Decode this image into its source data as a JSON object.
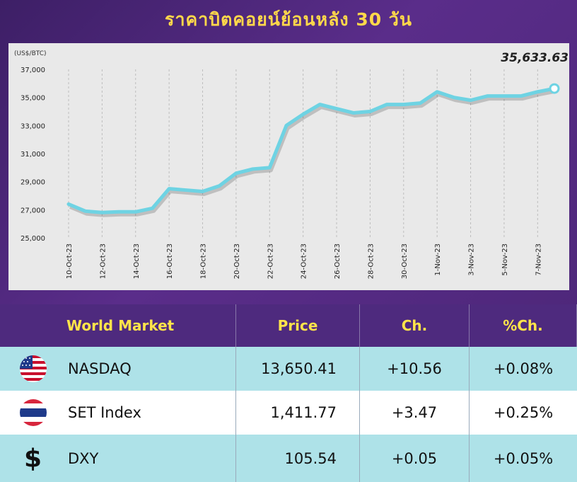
{
  "title": "ราคาบิตคอยน์ย้อนหลัง 30 วัน",
  "chart_data": {
    "type": "line",
    "ylabel": "(US$/BTC)",
    "latest_label": "35,633.63",
    "ylim": [
      25000,
      37000
    ],
    "yticks": [
      "25,000",
      "27,000",
      "29,000",
      "31,000",
      "33,000",
      "35,000",
      "37,000"
    ],
    "ytick_values": [
      25000,
      27000,
      29000,
      31000,
      33000,
      35000,
      37000
    ],
    "x_tick_labels": [
      "10-Oct-23",
      "12-Oct-23",
      "14-Oct-23",
      "16-Oct-23",
      "18-Oct-23",
      "20-Oct-23",
      "22-Oct-23",
      "24-Oct-23",
      "26-Oct-23",
      "28-Oct-23",
      "30-Oct-23",
      "1-Nov-23",
      "3-Nov-23",
      "5-Nov-23",
      "7-Nov-23"
    ],
    "x": [
      "10-Oct-23",
      "11-Oct-23",
      "12-Oct-23",
      "13-Oct-23",
      "14-Oct-23",
      "15-Oct-23",
      "16-Oct-23",
      "17-Oct-23",
      "18-Oct-23",
      "19-Oct-23",
      "20-Oct-23",
      "21-Oct-23",
      "22-Oct-23",
      "23-Oct-23",
      "24-Oct-23",
      "25-Oct-23",
      "26-Oct-23",
      "27-Oct-23",
      "28-Oct-23",
      "29-Oct-23",
      "30-Oct-23",
      "31-Oct-23",
      "1-Nov-23",
      "2-Nov-23",
      "3-Nov-23",
      "4-Nov-23",
      "5-Nov-23",
      "6-Nov-23",
      "7-Nov-23",
      "8-Nov-23"
    ],
    "values": [
      27400,
      26900,
      26800,
      26850,
      26850,
      27100,
      28500,
      28400,
      28300,
      28700,
      29600,
      29900,
      30000,
      33000,
      33800,
      34500,
      34200,
      33900,
      34000,
      34500,
      34500,
      34600,
      35400,
      35000,
      34800,
      35100,
      35100,
      35100,
      35400,
      35633.63
    ],
    "line_color": "#6ed3e3",
    "grid": "vertical"
  },
  "table": {
    "headers": [
      "World Market",
      "Price",
      "Ch.",
      "%Ch."
    ],
    "rows": [
      {
        "icon": "us-flag-icon",
        "name": "NASDAQ",
        "price": "13,650.41",
        "ch": "+10.56",
        "pct": "+0.08%"
      },
      {
        "icon": "thai-flag-icon",
        "name": "SET Index",
        "price": "1,411.77",
        "ch": "+3.47",
        "pct": "+0.25%"
      },
      {
        "icon": "dollar-icon",
        "symbol": "$",
        "name": "DXY",
        "price": "105.54",
        "ch": "+0.05",
        "pct": "+0.05%"
      }
    ]
  }
}
